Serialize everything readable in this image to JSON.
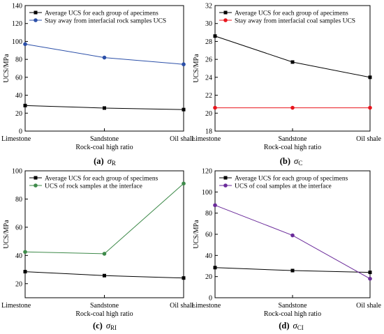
{
  "chart_data": [
    {
      "type": "line",
      "caption_letter": "(a)",
      "caption_symbol": "σ",
      "caption_sub": "R",
      "ylabel": "UCS/MPa",
      "xlabel": "Rock-coal high ratio",
      "categories": [
        "Limestone",
        "Sandstone",
        "Oil shale"
      ],
      "ylim": [
        0,
        140
      ],
      "yticks": [
        0,
        20,
        40,
        60,
        80,
        100,
        120,
        140
      ],
      "legend_position": "top-left",
      "series": [
        {
          "name": "Average UCS for each group of apecimens",
          "marker": "square",
          "color": "#000000",
          "values": [
            28.5,
            25.7,
            24.0
          ]
        },
        {
          "name": "Stay away from interfacial rock samples UCS",
          "marker": "circle",
          "color": "#2b4fa8",
          "values": [
            97,
            82,
            74.5
          ]
        }
      ]
    },
    {
      "type": "line",
      "caption_letter": "(b)",
      "caption_symbol": "σ",
      "caption_sub": "C",
      "ylabel": "UCS/MPa",
      "xlabel": "Rock-coal high ratio",
      "categories": [
        "Limestone",
        "Sandstone",
        "Oil shale"
      ],
      "ylim": [
        18,
        32
      ],
      "yticks": [
        18,
        20,
        22,
        24,
        26,
        28,
        30,
        32
      ],
      "legend_position": "top-left",
      "series": [
        {
          "name": "Average UCS for each group of apecimens",
          "marker": "square",
          "color": "#000000",
          "values": [
            28.6,
            25.7,
            24.0
          ]
        },
        {
          "name": "Stay away from interfacial coal samples UCS",
          "marker": "circle",
          "color": "#e8141c",
          "values": [
            20.6,
            20.6,
            20.6
          ]
        }
      ]
    },
    {
      "type": "line",
      "caption_letter": "(c)",
      "caption_symbol": "σ",
      "caption_sub": "RI",
      "ylabel": "UCS/MPa",
      "xlabel": "Rock-coal high ratio",
      "categories": [
        "Limestone",
        "Sandstone",
        "Oil shale"
      ],
      "ylim": [
        10,
        100
      ],
      "yticks": [
        20,
        40,
        60,
        80,
        100
      ],
      "legend_position": "top-left",
      "series": [
        {
          "name": "Average UCS for each group of specimens",
          "marker": "square",
          "color": "#000000",
          "values": [
            28.5,
            25.7,
            24.0
          ]
        },
        {
          "name": "UCS of rock samples at the interface",
          "marker": "circle",
          "color": "#3e8a4a",
          "values": [
            42.5,
            41.2,
            91.0
          ]
        }
      ]
    },
    {
      "type": "line",
      "caption_letter": "(d)",
      "caption_symbol": "σ",
      "caption_sub": "CI",
      "ylabel": "UCS/MPa",
      "xlabel": "Rock-coal high ratio",
      "categories": [
        "Limestone",
        "Sandstone",
        "Oil shale"
      ],
      "ylim": [
        0,
        120
      ],
      "yticks": [
        0,
        20,
        40,
        60,
        80,
        100,
        120
      ],
      "legend_position": "top-left",
      "series": [
        {
          "name": "Average UCS for each group of specimens",
          "marker": "square",
          "color": "#000000",
          "values": [
            28.5,
            25.7,
            24.0
          ]
        },
        {
          "name": "UCS of coal samples at the interface",
          "marker": "circle",
          "color": "#6a2a9a",
          "values": [
            87.5,
            59.0,
            18.0
          ]
        }
      ]
    }
  ]
}
